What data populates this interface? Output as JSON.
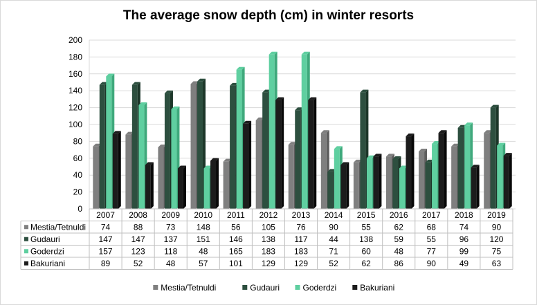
{
  "chart_data": {
    "type": "bar",
    "title": "The average snow depth (cm) in winter resorts",
    "categories": [
      "2007",
      "2008",
      "2009",
      "2010",
      "2011",
      "2012",
      "2013",
      "2014",
      "2015",
      "2016",
      "2017",
      "2018",
      "2019"
    ],
    "series": [
      {
        "name": "Mestia/Tetnuldi",
        "color": "#7f7f7f",
        "side": "#5e5e5e",
        "values": [
          74,
          88,
          73,
          148,
          56,
          105,
          76,
          90,
          55,
          62,
          68,
          74,
          90
        ]
      },
      {
        "name": "Gudauri",
        "color": "#2d4f3f",
        "side": "#1c3629",
        "values": [
          147,
          147,
          137,
          151,
          146,
          138,
          117,
          44,
          138,
          59,
          55,
          96,
          120
        ]
      },
      {
        "name": "Goderdzi",
        "color": "#5fcfa0",
        "side": "#3fa97c",
        "values": [
          157,
          123,
          118,
          48,
          165,
          183,
          183,
          71,
          60,
          48,
          77,
          99,
          75
        ]
      },
      {
        "name": "Bakuriani",
        "color": "#1c1c1c",
        "side": "#080808",
        "values": [
          89,
          52,
          48,
          57,
          101,
          129,
          129,
          52,
          62,
          86,
          90,
          49,
          63
        ]
      }
    ],
    "yticks": [
      "0",
      "20",
      "40",
      "60",
      "80",
      "100",
      "120",
      "140",
      "160",
      "180",
      "200"
    ],
    "ylim": [
      0,
      200
    ],
    "grid": true,
    "legend": "bottom",
    "data_table": true
  }
}
